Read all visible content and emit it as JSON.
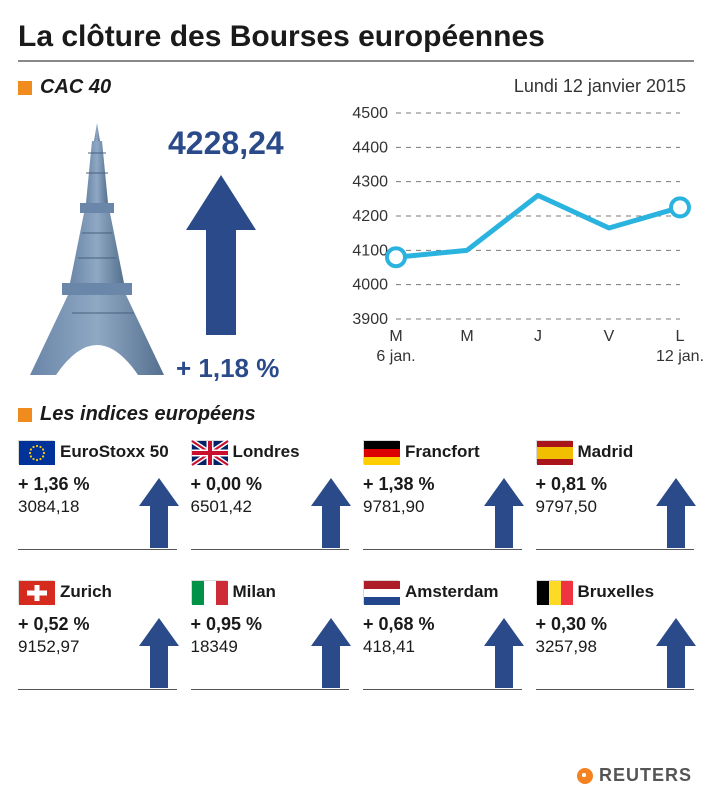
{
  "title": "La clôture des Bourses européennes",
  "accent_color": "#f08c1e",
  "arrow_color": "#2a4a8a",
  "cac40": {
    "label": "CAC 40",
    "value": "4228,24",
    "change": "+ 1,18 %"
  },
  "chart": {
    "date_label": "Lundi 12 janvier 2015",
    "type": "line",
    "ylim": [
      3900,
      4500
    ],
    "ytick_step": 100,
    "yticks": [
      "4500",
      "4400",
      "4300",
      "4200",
      "4100",
      "4000",
      "3900"
    ],
    "xlabels": [
      "M",
      "M",
      "J",
      "V",
      "L"
    ],
    "xsub_left": "6 jan.",
    "xsub_right": "12 jan.",
    "values": [
      4080,
      4100,
      4260,
      4165,
      4225
    ],
    "line_color": "#2bb3e0",
    "line_width": 5,
    "marker_fill": "#ffffff",
    "marker_stroke": "#2bb3e0",
    "marker_radius": 9,
    "grid_color": "#7a7a7a",
    "text_color": "#333333",
    "label_fontsize": 16
  },
  "indices_label": "Les indices européens",
  "indices": [
    {
      "name": "EuroStoxx 50",
      "change": "+ 1,36 %",
      "value": "3084,18",
      "flag": "eu"
    },
    {
      "name": "Londres",
      "change": "+ 0,00 %",
      "value": "6501,42",
      "flag": "uk"
    },
    {
      "name": "Francfort",
      "change": "+ 1,38 %",
      "value": "9781,90",
      "flag": "de"
    },
    {
      "name": "Madrid",
      "change": "+ 0,81 %",
      "value": "9797,50",
      "flag": "es"
    },
    {
      "name": "Zurich",
      "change": "+ 0,52 %",
      "value": "9152,97",
      "flag": "ch"
    },
    {
      "name": "Milan",
      "change": "+ 0,95 %",
      "value": "18349",
      "flag": "it"
    },
    {
      "name": "Amsterdam",
      "change": "+ 0,68 %",
      "value": "418,41",
      "flag": "nl"
    },
    {
      "name": "Bruxelles",
      "change": "+ 0,30 %",
      "value": "3257,98",
      "flag": "be"
    }
  ],
  "source": "REUTERS"
}
